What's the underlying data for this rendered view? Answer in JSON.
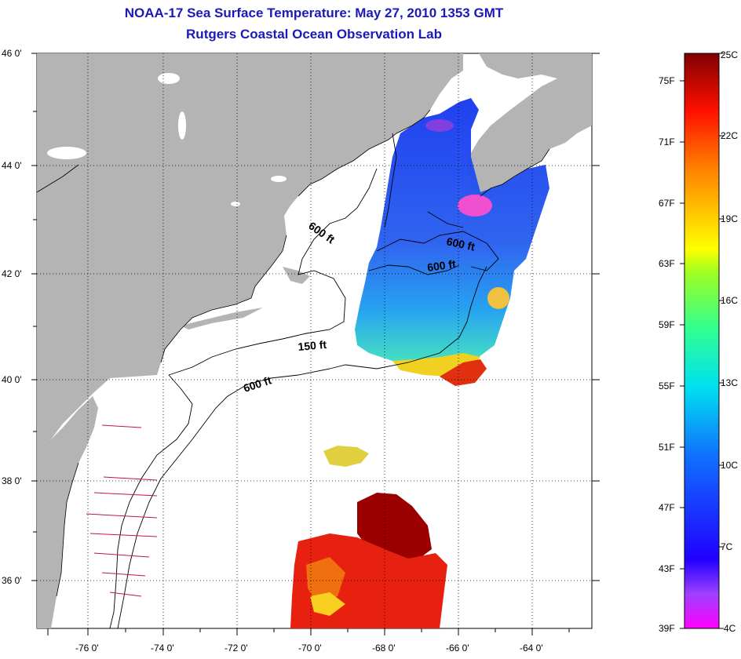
{
  "header": {
    "title": "NOAA-17 Sea Surface Temperature:  May 27, 2010 1353 GMT",
    "subtitle": "Rutgers Coastal Ocean Observation Lab"
  },
  "map": {
    "x_ticks": [
      "-76 0'",
      "-74 0'",
      "-72 0'",
      "-70 0'",
      "-68 0'",
      "-66 0'",
      "-64 0'"
    ],
    "y_ticks": [
      "46 0'",
      "44 0'",
      "42 0'",
      "40 0'",
      "38 0'",
      "36 0'"
    ],
    "contour_labels": [
      "600 ft",
      "600 ft",
      "600 ft",
      "150 ft",
      "600 ft"
    ]
  },
  "colorbar": {
    "fahrenheit": [
      "75F",
      "71F",
      "67F",
      "63F",
      "59F",
      "55F",
      "51F",
      "47F",
      "43F",
      "39F"
    ],
    "celsius": [
      "25C",
      "22C",
      "19C",
      "16C",
      "13C",
      "10C",
      "7C",
      "4C"
    ]
  },
  "colors": {
    "land": "#b4b4b4",
    "title": "#1a1ab8"
  }
}
